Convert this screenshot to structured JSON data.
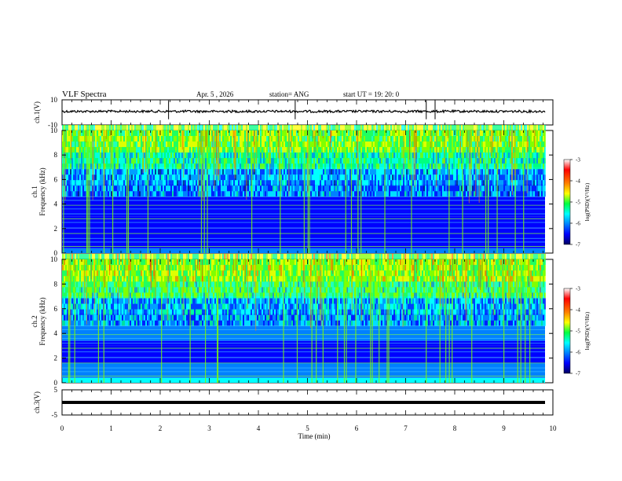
{
  "header": {
    "title": "VLF Spectra",
    "date": "Apr. 5 , 2026",
    "station": "station= ANG",
    "start_ut": "start UT =  19: 20: 0"
  },
  "chart_data": [
    {
      "type": "line",
      "panel": "ch1-waveform",
      "ylabel": "ch.1(V)",
      "ylim": [
        -10,
        10
      ],
      "y_ticks": [
        "10",
        "-10"
      ],
      "baseline": 0.8,
      "spikes_at_min": [
        2.17,
        4.75,
        7.42,
        7.6
      ]
    },
    {
      "type": "heatmap",
      "panel": "ch1-spectrogram",
      "ylabel_line1": "ch.1",
      "ylabel_line2": "Frequency (kHz)",
      "ylim": [
        0,
        10
      ],
      "y_ticks": [
        "0",
        "2",
        "4",
        "6",
        "8",
        "10"
      ],
      "colorbar": {
        "label": "log(PSD)(V²/Hz)",
        "ticks": [
          "-3",
          "-4",
          "-5",
          "-6",
          "-7"
        ],
        "range": [
          -7,
          -3
        ]
      },
      "colors": [
        "#00007a",
        "#0000ff",
        "#0080ff",
        "#00ffff",
        "#00ff80",
        "#80ff00",
        "#ffff00",
        "#ff8000",
        "#ff0000",
        "#ffffff"
      ]
    },
    {
      "type": "heatmap",
      "panel": "ch2-spectrogram",
      "ylabel_line1": "ch.2",
      "ylabel_line2": "Frequency (kHz)",
      "ylim": [
        0,
        10
      ],
      "y_ticks": [
        "0",
        "2",
        "4",
        "6",
        "8",
        "10"
      ],
      "colorbar": {
        "label": "log(PSD)(V²/Hz)",
        "ticks": [
          "-3",
          "-4",
          "-5",
          "-6",
          "-7"
        ],
        "range": [
          -7,
          -3
        ]
      }
    },
    {
      "type": "line",
      "panel": "ch3-waveform",
      "ylabel": "ch.3(V)",
      "ylim": [
        -5,
        5
      ],
      "y_ticks": [
        "5",
        "-5"
      ],
      "baseline": 0.0
    }
  ],
  "x_axis": {
    "label": "Time (min)",
    "ticks": [
      "0",
      "1",
      "2",
      "3",
      "4",
      "5",
      "6",
      "7",
      "8",
      "9",
      "10"
    ],
    "xlim": [
      0,
      10
    ],
    "data_end_min": 9.84
  }
}
